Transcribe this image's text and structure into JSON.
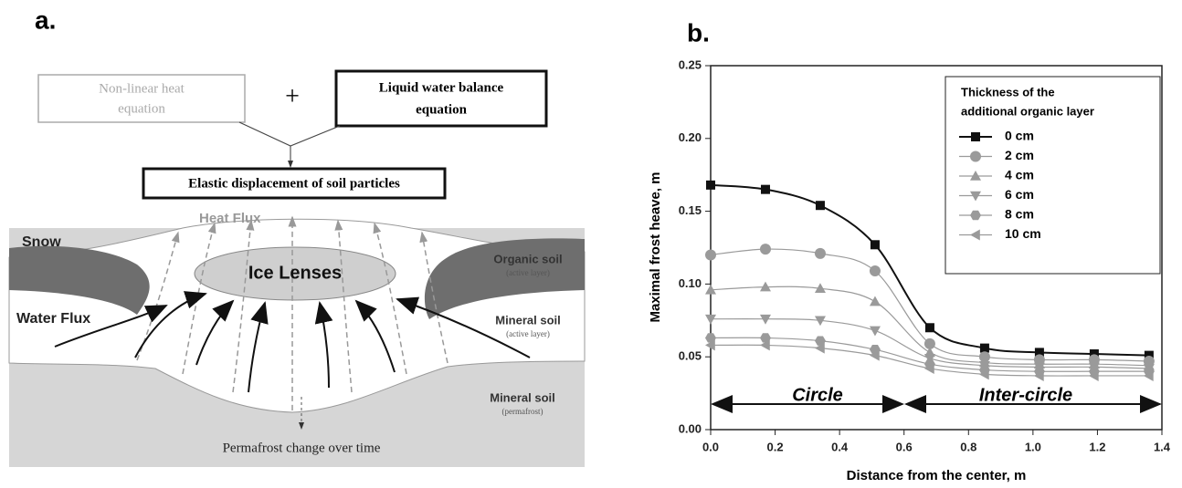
{
  "panel_a": {
    "label": "a.",
    "heat_equation": [
      "Non-linear heat",
      "equation"
    ],
    "plus": "+",
    "water_equation": [
      "Liquid water balance",
      "equation"
    ],
    "elastic": "Elastic displacement of soil particles",
    "heat_flux": "Heat Flux",
    "snow": "Snow",
    "ice_lenses": "Ice Lenses",
    "organic_soil": "Organic soil",
    "organic_sub": "(active layer)",
    "water_flux": "Water Flux",
    "mineral_active": "Mineral soil",
    "mineral_active_sub": "(active layer)",
    "mineral_perma": "Mineral soil",
    "mineral_perma_sub": "(permafrost)",
    "permafrost_change": "Permafrost change over time"
  },
  "chart_data": {
    "type": "line",
    "panel_label": "b.",
    "x_label": "Distance from the center, m",
    "y_label": "Maximal frost heave, m",
    "legend_title": [
      "Thickness of the",
      "additional organic layer"
    ],
    "annotations": [
      "Circle",
      "Inter-circle"
    ],
    "x": [
      0,
      0.17,
      0.34,
      0.51,
      0.68,
      0.85,
      1.02,
      1.19,
      1.36
    ],
    "series": [
      {
        "name": "0 cm",
        "color": "#111111",
        "marker": "square",
        "values": [
          0.168,
          0.165,
          0.154,
          0.127,
          0.07,
          0.056,
          0.053,
          0.052,
          0.051
        ]
      },
      {
        "name": "2 cm",
        "color": "#9a9a9a",
        "marker": "circle",
        "values": [
          0.12,
          0.124,
          0.121,
          0.109,
          0.059,
          0.05,
          0.048,
          0.048,
          0.047
        ]
      },
      {
        "name": "4 cm",
        "color": "#9a9a9a",
        "marker": "triangle-up",
        "values": [
          0.096,
          0.098,
          0.097,
          0.088,
          0.053,
          0.046,
          0.045,
          0.045,
          0.044
        ]
      },
      {
        "name": "6 cm",
        "color": "#9a9a9a",
        "marker": "triangle-down",
        "values": [
          0.076,
          0.076,
          0.075,
          0.068,
          0.049,
          0.044,
          0.043,
          0.043,
          0.042
        ]
      },
      {
        "name": "8 cm",
        "color": "#9a9a9a",
        "marker": "hexagon",
        "values": [
          0.063,
          0.063,
          0.061,
          0.055,
          0.045,
          0.041,
          0.04,
          0.04,
          0.04
        ]
      },
      {
        "name": "10 cm",
        "color": "#9a9a9a",
        "marker": "triangle-left",
        "values": [
          0.058,
          0.058,
          0.056,
          0.051,
          0.042,
          0.038,
          0.037,
          0.037,
          0.037
        ]
      }
    ],
    "xlim": [
      0,
      1.4
    ],
    "xticks": [
      {
        "value": 0,
        "label": "0.0"
      },
      {
        "value": 0.2,
        "label": "0.2"
      },
      {
        "value": 0.4,
        "label": "0.4"
      },
      {
        "value": 0.6,
        "label": "0.6"
      },
      {
        "value": 0.8,
        "label": "0.8"
      },
      {
        "value": 1.0,
        "label": "1.0"
      },
      {
        "value": 1.2,
        "label": "1.2"
      },
      {
        "value": 1.4,
        "label": "1.4"
      }
    ],
    "ylim": [
      0,
      0.25
    ],
    "yticks": [
      {
        "value": 0,
        "label": "0.00"
      },
      {
        "value": 0.05,
        "label": "0.05"
      },
      {
        "value": 0.1,
        "label": "0.10"
      },
      {
        "value": 0.15,
        "label": "0.15"
      },
      {
        "value": 0.2,
        "label": "0.20"
      },
      {
        "value": 0.25,
        "label": "0.25"
      }
    ],
    "grid": false,
    "legend": "upper right"
  }
}
